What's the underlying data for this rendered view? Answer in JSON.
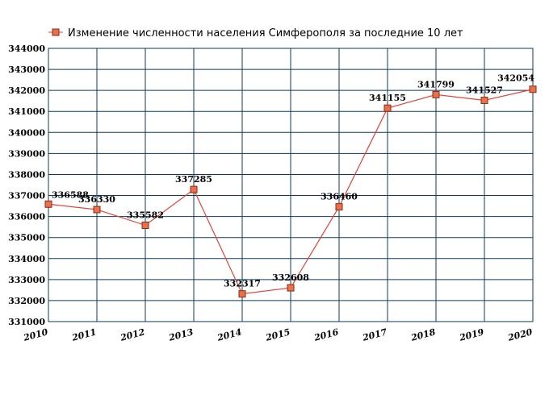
{
  "chart_data": {
    "type": "line",
    "x": [
      "2010",
      "2011",
      "2012",
      "2013",
      "2014",
      "2015",
      "2016",
      "2017",
      "2018",
      "2019",
      "2020"
    ],
    "series": [
      {
        "name": "Изменение численности населения Симферополя за последние 10 лет",
        "values": [
          336588,
          336330,
          335582,
          337285,
          332317,
          332608,
          336460,
          341155,
          341799,
          341527,
          342054
        ],
        "line_color": "#e0443a",
        "marker_fill": "#e8704a",
        "marker_stroke": "#8b2a14"
      }
    ],
    "data_labels": [
      "336588",
      "336330",
      "335582",
      "337285",
      "332317",
      "332608",
      "336460",
      "341155",
      "341799",
      "341527",
      "342054"
    ],
    "y_ticks": [
      "331000",
      "332000",
      "333000",
      "334000",
      "335000",
      "336000",
      "337000",
      "338000",
      "339000",
      "340000",
      "341000",
      "342000",
      "343000",
      "344000"
    ],
    "ylim": [
      331000,
      344000
    ],
    "grid": true,
    "grid_color": "#0d3a5a",
    "legend_position": "top-left"
  }
}
